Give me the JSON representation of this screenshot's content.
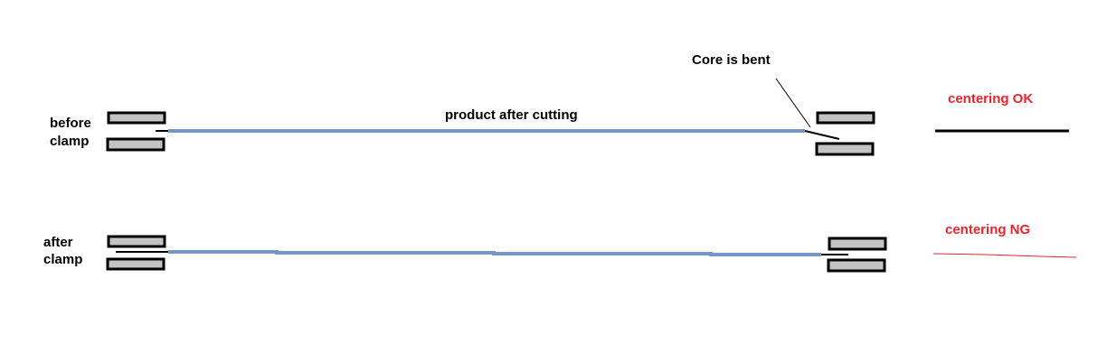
{
  "labels": {
    "before_clamp_line1": "before",
    "before_clamp_line2": "clamp",
    "after_clamp_line1": "after",
    "after_clamp_line2": "clamp",
    "product_after_cutting": "product after cutting",
    "core_is_bent": "Core is bent",
    "centering_ok": "centering OK",
    "centering_ng": "centering NG"
  },
  "colors": {
    "product": "#7796c4",
    "ok_line": "#000000",
    "ng_line": "#e8242c",
    "ng_text": "#e8242c",
    "clamp_fill": "#c3c3c3",
    "clamp_border": "#000000"
  }
}
